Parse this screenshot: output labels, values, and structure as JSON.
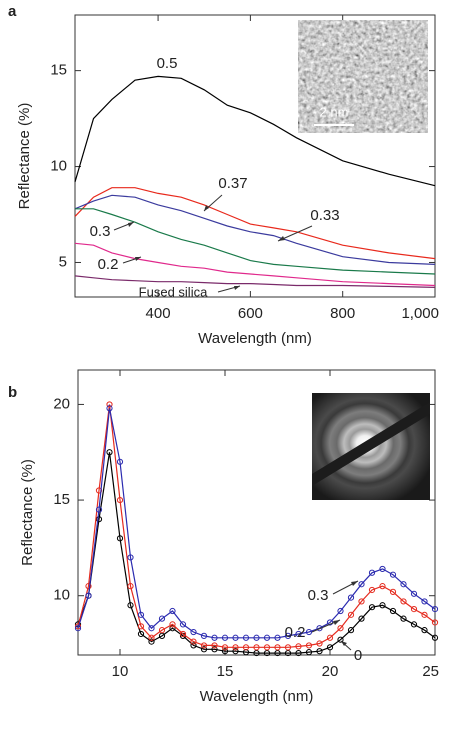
{
  "chart_data": [
    {
      "type": "line",
      "panel_label": "a",
      "x_label": "Wavelength (nm)",
      "y_label": "Reflectance (%)",
      "annotations": [
        "2 nm"
      ],
      "x": [
        220,
        260,
        300,
        350,
        400,
        450,
        500,
        550,
        600,
        650,
        700,
        800,
        900,
        1000
      ],
      "xlim": [
        220,
        1000
      ],
      "ylim": [
        3.2,
        17.9
      ],
      "xticks": [
        400,
        600,
        800,
        {
          "value": 1000,
          "label": "1,000"
        }
      ],
      "yticks": [
        5,
        10,
        15
      ],
      "series": [
        {
          "name": "0.5",
          "color": "#000000",
          "values": [
            9.2,
            12.5,
            13.5,
            14.5,
            14.7,
            14.6,
            14.0,
            13.2,
            12.8,
            12.2,
            11.5,
            10.3,
            9.6,
            9.0
          ]
        },
        {
          "name": "0.37",
          "color": "#e8291c",
          "values": [
            7.4,
            8.4,
            8.9,
            8.9,
            8.6,
            8.4,
            8.0,
            7.5,
            7.0,
            6.8,
            6.6,
            5.9,
            5.5,
            5.2
          ]
        },
        {
          "name": "0.33",
          "color": "#3b3b9e",
          "values": [
            7.8,
            8.2,
            8.5,
            8.4,
            8.0,
            7.7,
            7.3,
            6.9,
            6.6,
            6.4,
            6.0,
            5.3,
            5.0,
            4.9
          ]
        },
        {
          "name": "0.3",
          "color": "#1a7a4a",
          "values": [
            7.8,
            7.8,
            7.5,
            7.1,
            6.6,
            6.2,
            5.9,
            5.5,
            5.1,
            4.9,
            4.8,
            4.6,
            4.5,
            4.4
          ]
        },
        {
          "name": "0.2",
          "color": "#e0298c",
          "values": [
            6.0,
            5.9,
            5.5,
            5.2,
            5.0,
            4.8,
            4.7,
            4.5,
            4.4,
            4.3,
            4.2,
            4.0,
            3.9,
            3.8
          ]
        },
        {
          "name": "Fused silica",
          "color": "#7a2a6a",
          "values": [
            4.3,
            4.2,
            4.1,
            4.05,
            4.0,
            4.0,
            3.95,
            3.9,
            3.9,
            3.85,
            3.8,
            3.8,
            3.75,
            3.7
          ]
        }
      ]
    },
    {
      "type": "scatter",
      "connect": true,
      "panel_label": "b",
      "x_label": "Wavelength (nm)",
      "y_label": "Reflectance (%)",
      "x": [
        8,
        8.5,
        9,
        9.5,
        10,
        10.5,
        11,
        11.5,
        12,
        12.5,
        13,
        13.5,
        14,
        14.5,
        15,
        15.5,
        16,
        16.5,
        17,
        17.5,
        18,
        18.5,
        19,
        19.5,
        20,
        20.5,
        21,
        21.5,
        22,
        22.5,
        23,
        23.5,
        24,
        24.5,
        25
      ],
      "xlim": [
        8,
        25
      ],
      "ylim": [
        6.9,
        21.8
      ],
      "xticks": [
        10,
        15,
        20,
        25
      ],
      "yticks": [
        10,
        15,
        20
      ],
      "series": [
        {
          "name": "0",
          "color": "#000000",
          "values": [
            8.5,
            10,
            14,
            17.5,
            13,
            9.5,
            8.0,
            7.6,
            7.9,
            8.3,
            7.9,
            7.4,
            7.2,
            7.2,
            7.1,
            7.1,
            7.05,
            7.0,
            7.0,
            7.0,
            7.0,
            7.0,
            7.05,
            7.1,
            7.3,
            7.7,
            8.2,
            8.8,
            9.4,
            9.5,
            9.2,
            8.8,
            8.5,
            8.2,
            7.8
          ]
        },
        {
          "name": "0.2",
          "color": "#e52b1f",
          "values": [
            8.4,
            10.5,
            15.5,
            20.0,
            15,
            10.5,
            8.4,
            7.8,
            8.2,
            8.5,
            8.0,
            7.6,
            7.4,
            7.4,
            7.3,
            7.3,
            7.3,
            7.3,
            7.3,
            7.3,
            7.3,
            7.35,
            7.4,
            7.5,
            7.8,
            8.3,
            9.0,
            9.7,
            10.3,
            10.5,
            10.2,
            9.7,
            9.3,
            9.0,
            8.6
          ]
        },
        {
          "name": "0.3",
          "color": "#2b2bb0",
          "values": [
            8.3,
            10,
            14.5,
            19.8,
            17,
            12,
            9.0,
            8.3,
            8.8,
            9.2,
            8.5,
            8.1,
            7.9,
            7.8,
            7.8,
            7.8,
            7.8,
            7.8,
            7.8,
            7.8,
            7.9,
            8.0,
            8.1,
            8.3,
            8.6,
            9.2,
            9.9,
            10.6,
            11.2,
            11.4,
            11.1,
            10.6,
            10.1,
            9.7,
            9.3
          ]
        }
      ]
    }
  ]
}
